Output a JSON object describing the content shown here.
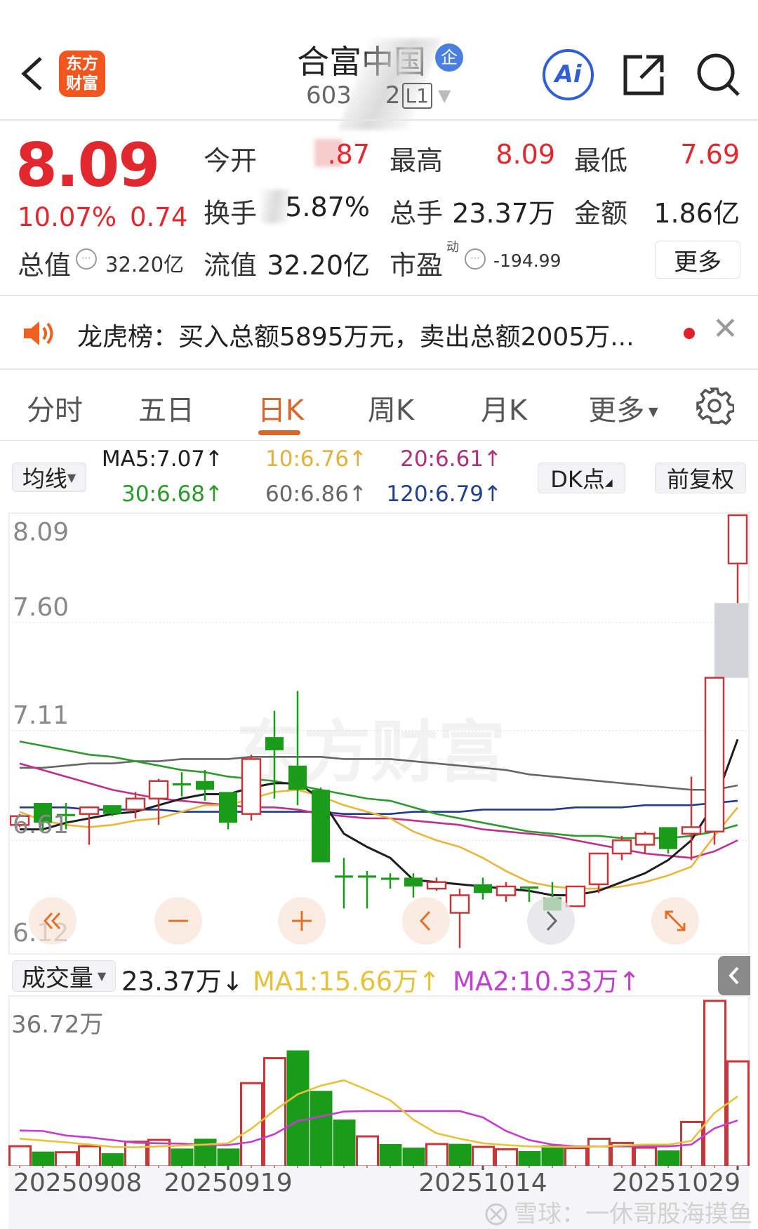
{
  "header": {
    "logo_text": [
      "东方",
      "财富"
    ],
    "title": "合富中国",
    "enterprise_badge": "企",
    "code_prefix": "603",
    "code_suffix": "2",
    "level_badge": "L1",
    "ai_label": "Ai",
    "icons": [
      "back-chevron-icon",
      "share-icon",
      "search-icon"
    ]
  },
  "quote": {
    "price": "8.09",
    "change_pct": "10.07%",
    "change": "0.74",
    "open_label": "今开",
    "open_value": ".87",
    "high_label": "最高",
    "high_value": "8.09",
    "low_label": "最低",
    "low_value": "7.69",
    "turnover_label": "换手",
    "turnover_value": "5.87%",
    "volume_label": "总手",
    "volume_value": "23.37万",
    "amount_label": "金额",
    "amount_value": "1.86亿",
    "mktcap_label": "总值",
    "mktcap_value": "32.20亿",
    "float_label": "流值",
    "float_value": "32.20亿",
    "pe_label": "市盈",
    "pe_super": "动",
    "pe_value": "-194.99",
    "more_button": "更多"
  },
  "news": {
    "text": "龙虎榜：买入总额5895万元，卖出总额2005万...",
    "colors": {
      "speaker": "#f0601e",
      "dot": "#e0202a"
    }
  },
  "tabs": {
    "items": [
      "分时",
      "五日",
      "日K",
      "周K",
      "月K",
      "更多"
    ],
    "active": 2
  },
  "indicators": {
    "ma_button": "均线",
    "ma5": "MA5:7.07↑",
    "ma10": "10:6.76↑",
    "ma20": "20:6.61↑",
    "ma30": "30:6.68↑",
    "ma60": "60:6.86↑",
    "ma120": "120:6.79↑",
    "dk_button": "DK点",
    "adjust_button": "前复权"
  },
  "volume_header": {
    "button": "成交量",
    "current": "23.37万↓",
    "ma1": "MA1:15.66万↑",
    "ma2": "MA2:10.33万↑"
  },
  "watermarks": {
    "chart": "东方财富",
    "footer": "雪球：一休哥股海摸鱼"
  },
  "chart_data": [
    {
      "type": "candlestick",
      "title": "",
      "y_ticks": [
        "8.09",
        "7.60",
        "7.11",
        "6.61",
        "6.12"
      ],
      "ylim": [
        6.09,
        8.1
      ],
      "grid": true,
      "colors": {
        "up": "#c8363a",
        "down": "#1a9b1a",
        "ma5": "#1e1e1e",
        "ma10": "#e8b63a",
        "ma20": "#c0308a",
        "ma30": "#2e9a2e",
        "ma60": "#666666",
        "ma120": "#1f3a8f"
      },
      "ohlc": [
        [
          6.68,
          6.73,
          6.67,
          6.72
        ],
        [
          6.78,
          6.78,
          6.65,
          6.69
        ],
        [
          6.73,
          6.78,
          6.66,
          6.72
        ],
        [
          6.73,
          6.76,
          6.59,
          6.76
        ],
        [
          6.77,
          6.77,
          6.72,
          6.73
        ],
        [
          6.75,
          6.83,
          6.71,
          6.8
        ],
        [
          6.8,
          6.89,
          6.68,
          6.88
        ],
        [
          6.87,
          6.92,
          6.81,
          6.86
        ],
        [
          6.88,
          6.93,
          6.79,
          6.84
        ],
        [
          6.83,
          6.83,
          6.66,
          6.69
        ],
        [
          6.73,
          7.0,
          6.7,
          6.98
        ],
        [
          7.08,
          7.2,
          6.8,
          7.02
        ],
        [
          6.95,
          7.29,
          6.77,
          6.84
        ],
        [
          6.84,
          6.85,
          6.51,
          6.51
        ],
        [
          6.45,
          6.53,
          6.3,
          6.44
        ],
        [
          6.45,
          6.47,
          6.3,
          6.44
        ],
        [
          6.44,
          6.46,
          6.39,
          6.43
        ],
        [
          6.44,
          6.46,
          6.35,
          6.4
        ],
        [
          6.39,
          6.44,
          6.38,
          6.42
        ],
        [
          6.28,
          6.39,
          6.12,
          6.36
        ],
        [
          6.41,
          6.44,
          6.34,
          6.37
        ],
        [
          6.36,
          6.42,
          6.33,
          6.4
        ],
        [
          6.4,
          6.4,
          6.33,
          6.39
        ],
        [
          6.35,
          6.42,
          6.29,
          6.29
        ],
        [
          6.31,
          6.4,
          6.31,
          6.4
        ],
        [
          6.41,
          6.55,
          6.37,
          6.55
        ],
        [
          6.55,
          6.63,
          6.52,
          6.61
        ],
        [
          6.59,
          6.65,
          6.55,
          6.64
        ],
        [
          6.67,
          6.67,
          6.55,
          6.57
        ],
        [
          6.64,
          6.9,
          6.52,
          6.67
        ],
        [
          6.65,
          7.35,
          6.59,
          7.35
        ],
        [
          7.87,
          8.09,
          7.69,
          8.09
        ]
      ],
      "ma": {
        "ma5": [
          6.66,
          6.66,
          6.69,
          6.71,
          6.73,
          6.74,
          6.77,
          6.8,
          6.82,
          6.82,
          6.85,
          6.87,
          6.87,
          6.8,
          6.64,
          6.58,
          6.53,
          6.43,
          6.42,
          6.41,
          6.4,
          6.39,
          6.38,
          6.36,
          6.36,
          6.38,
          6.42,
          6.46,
          6.52,
          6.61,
          6.78,
          7.07
        ],
        "ma10": [
          6.74,
          6.7,
          6.68,
          6.67,
          6.68,
          6.7,
          6.71,
          6.74,
          6.77,
          6.77,
          6.8,
          6.83,
          6.84,
          6.81,
          6.77,
          6.74,
          6.71,
          6.65,
          6.61,
          6.58,
          6.53,
          6.47,
          6.42,
          6.4,
          6.39,
          6.39,
          6.4,
          6.42,
          6.45,
          6.49,
          6.63,
          6.76
        ],
        "ma20": [
          6.96,
          6.93,
          6.9,
          6.87,
          6.84,
          6.82,
          6.8,
          6.79,
          6.78,
          6.77,
          6.76,
          6.76,
          6.75,
          6.73,
          6.72,
          6.71,
          6.71,
          6.7,
          6.69,
          6.68,
          6.66,
          6.65,
          6.64,
          6.63,
          6.61,
          6.59,
          6.57,
          6.55,
          6.54,
          6.53,
          6.56,
          6.61
        ],
        "ma30": [
          7.06,
          7.04,
          7.02,
          7.0,
          6.99,
          6.97,
          6.95,
          6.93,
          6.92,
          6.9,
          6.89,
          6.88,
          6.86,
          6.84,
          6.82,
          6.8,
          6.79,
          6.76,
          6.73,
          6.71,
          6.69,
          6.67,
          6.65,
          6.64,
          6.63,
          6.63,
          6.62,
          6.62,
          6.62,
          6.63,
          6.65,
          6.68
        ],
        "ma60": [
          6.94,
          6.94,
          6.95,
          6.96,
          6.96,
          6.97,
          6.97,
          6.98,
          6.98,
          6.98,
          6.99,
          6.99,
          6.99,
          6.99,
          6.98,
          6.98,
          6.98,
          6.97,
          6.96,
          6.95,
          6.94,
          6.93,
          6.91,
          6.9,
          6.89,
          6.88,
          6.87,
          6.86,
          6.85,
          6.84,
          6.84,
          6.86
        ],
        "ma120": [
          6.76,
          6.76,
          6.76,
          6.75,
          6.75,
          6.75,
          6.75,
          6.74,
          6.74,
          6.74,
          6.74,
          6.74,
          6.74,
          6.74,
          6.73,
          6.73,
          6.73,
          6.74,
          6.74,
          6.74,
          6.75,
          6.75,
          6.75,
          6.75,
          6.76,
          6.76,
          6.76,
          6.77,
          6.77,
          6.77,
          6.78,
          6.79
        ]
      },
      "highlight_band": [
        7.35,
        7.69
      ]
    },
    {
      "type": "bar",
      "title": "",
      "unit": "万",
      "y_max_label": "36.72万",
      "ylim": [
        0,
        36.72
      ],
      "colors": {
        "up": "#c8363a",
        "down": "#1a9b1a",
        "ma1": "#e8c23a",
        "ma2": "#c43ccc"
      },
      "values": [
        4.64,
        3.46,
        3.3,
        4.64,
        3.09,
        5.62,
        6.03,
        4.13,
        6.29,
        4.13,
        18.57,
        24.08,
        25.79,
        16.87,
        10.52,
        6.81,
        5.11,
        4.33,
        5.11,
        5.16,
        4.49,
        3.97,
        3.56,
        4.85,
        4.23,
        6.29,
        5.36,
        4.33,
        3.71,
        10.0,
        36.72,
        23.37
      ],
      "up": [
        1,
        0,
        1,
        1,
        0,
        1,
        1,
        0,
        0,
        0,
        1,
        1,
        0,
        0,
        0,
        1,
        0,
        0,
        1,
        0,
        1,
        1,
        0,
        0,
        1,
        1,
        1,
        1,
        0,
        1,
        1,
        1
      ],
      "ma1": [
        6.3,
        5.9,
        5.5,
        5.0,
        4.5,
        4.4,
        4.6,
        4.8,
        5.0,
        5.3,
        8.5,
        12.5,
        16.1,
        18.0,
        19.2,
        17.1,
        14.8,
        10.5,
        7.5,
        6.3,
        5.3,
        4.9,
        4.6,
        4.5,
        4.5,
        4.6,
        4.8,
        5.0,
        5.0,
        5.8,
        12.0,
        15.66
      ],
      "ma2": [
        8.1,
        8.0,
        7.0,
        6.6,
        6.0,
        5.4,
        5.3,
        5.2,
        4.9,
        4.9,
        5.6,
        7.3,
        10.2,
        11.2,
        12.3,
        12.4,
        12.4,
        12.4,
        12.4,
        12.4,
        11.0,
        8.0,
        6.0,
        5.0,
        4.6,
        4.6,
        4.6,
        4.6,
        4.6,
        5.0,
        8.6,
        10.33
      ],
      "x_labels": [
        {
          "index": 0,
          "text": "20250908"
        },
        {
          "index": 9,
          "text": "20250919"
        },
        {
          "index": 20,
          "text": "20251014"
        },
        {
          "index": 31,
          "text": "20251029"
        }
      ]
    }
  ]
}
